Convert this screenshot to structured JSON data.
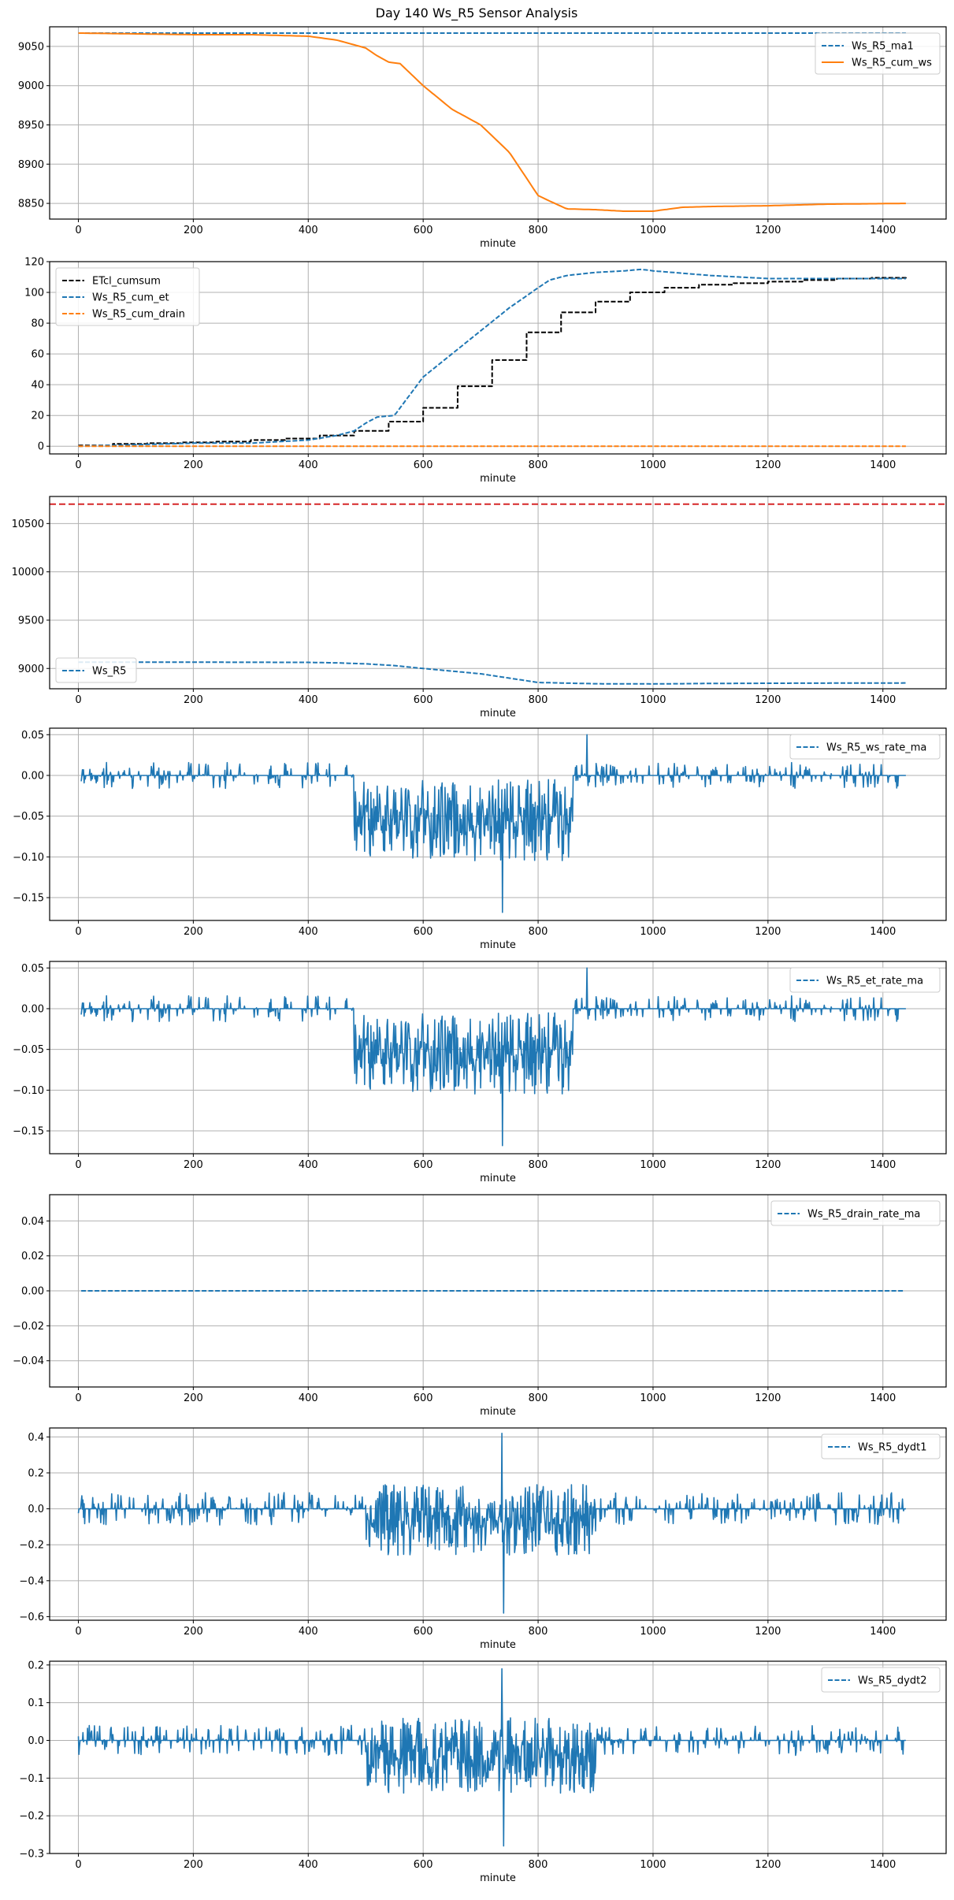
{
  "figure": {
    "title": "Day 140 Ws_R5 Sensor Analysis"
  },
  "colors": {
    "blue": "#1f77b4",
    "orange": "#ff7f0e",
    "black": "#000000",
    "red": "#d62728"
  },
  "chart_data": [
    {
      "type": "line",
      "xlabel": "minute",
      "xlim": [
        -50,
        1510
      ],
      "ylim": [
        8830,
        9075
      ],
      "xticks": [
        0,
        200,
        400,
        600,
        800,
        1000,
        1200,
        1400
      ],
      "yticks": [
        8850,
        8900,
        8950,
        9000,
        9050
      ],
      "legend_position": "top-right",
      "series": [
        {
          "name": "Ws_R5_ma1",
          "color": "blue",
          "style": "dashed",
          "shape": "smooth",
          "x": [
            0,
            1440
          ],
          "y": [
            9067,
            9067
          ]
        },
        {
          "name": "Ws_R5_cum_ws",
          "color": "orange",
          "style": "solid",
          "shape": "smooth",
          "x": [
            0,
            100,
            200,
            300,
            400,
            450,
            500,
            520,
            540,
            560,
            600,
            650,
            700,
            750,
            800,
            820,
            850,
            900,
            950,
            1000,
            1050,
            1100,
            1200,
            1300,
            1440
          ],
          "y": [
            9067,
            9066,
            9065,
            9065,
            9063,
            9058,
            9048,
            9038,
            9030,
            9028,
            9000,
            8970,
            8950,
            8915,
            8860,
            8853,
            8843,
            8842,
            8840,
            8840,
            8845,
            8846,
            8847,
            8849,
            8850
          ]
        }
      ]
    },
    {
      "type": "line",
      "xlabel": "minute",
      "xlim": [
        -50,
        1510
      ],
      "ylim": [
        -5,
        120
      ],
      "xticks": [
        0,
        200,
        400,
        600,
        800,
        1000,
        1200,
        1400
      ],
      "yticks": [
        0,
        20,
        40,
        60,
        80,
        100,
        120
      ],
      "legend_position": "top-left",
      "series": [
        {
          "name": "ETcl_cumsum",
          "color": "black",
          "style": "dashed",
          "shape": "step",
          "x": [
            0,
            60,
            120,
            180,
            240,
            300,
            360,
            420,
            480,
            540,
            600,
            660,
            720,
            780,
            840,
            900,
            960,
            1020,
            1080,
            1140,
            1200,
            1260,
            1320,
            1380,
            1440
          ],
          "y": [
            0.5,
            1.5,
            2,
            2.5,
            3,
            4,
            5,
            7,
            10,
            16,
            25,
            39,
            56,
            74,
            87,
            94,
            100,
            103,
            105,
            106,
            107,
            108,
            109,
            109.5,
            110
          ]
        },
        {
          "name": "Ws_R5_cum_et",
          "color": "blue",
          "style": "dashed",
          "shape": "smooth",
          "x": [
            0,
            100,
            200,
            300,
            400,
            450,
            480,
            500,
            520,
            550,
            560,
            600,
            650,
            700,
            750,
            800,
            820,
            850,
            900,
            950,
            980,
            1000,
            1100,
            1200,
            1300,
            1440
          ],
          "y": [
            0,
            1,
            2,
            2,
            4,
            7,
            10,
            15,
            19,
            20,
            25,
            45,
            60,
            75,
            90,
            103,
            108,
            111,
            113,
            114,
            115,
            114,
            111,
            109,
            109,
            109
          ]
        },
        {
          "name": "Ws_R5_cum_drain",
          "color": "orange",
          "style": "dashed",
          "shape": "smooth",
          "x": [
            0,
            1440
          ],
          "y": [
            0,
            0
          ]
        }
      ]
    },
    {
      "type": "line",
      "xlabel": "minute",
      "xlim": [
        -50,
        1510
      ],
      "ylim": [
        8790,
        10780
      ],
      "xticks": [
        0,
        200,
        400,
        600,
        800,
        1000,
        1200,
        1400
      ],
      "yticks": [
        9000,
        9500,
        10000,
        10500
      ],
      "legend_position": "bottom-left",
      "hline": {
        "y": 10700,
        "color": "red",
        "style": "dashed"
      },
      "series": [
        {
          "name": "Ws_R5",
          "color": "blue",
          "style": "dashed",
          "shape": "smooth",
          "x": [
            0,
            200,
            400,
            450,
            500,
            550,
            600,
            700,
            800,
            900,
            1000,
            1100,
            1200,
            1440
          ],
          "y": [
            9065,
            9065,
            9063,
            9058,
            9048,
            9030,
            9000,
            8945,
            8855,
            8842,
            8840,
            8845,
            8847,
            8850
          ]
        }
      ]
    },
    {
      "type": "line",
      "xlabel": "minute",
      "xlim": [
        -50,
        1510
      ],
      "ylim": [
        -0.178,
        0.058
      ],
      "xticks": [
        0,
        200,
        400,
        600,
        800,
        1000,
        1200,
        1400
      ],
      "yticks": [
        -0.15,
        -0.1,
        -0.05,
        0.0,
        0.05
      ],
      "ytick_labels": [
        "−0.15",
        "−0.10",
        "−0.05",
        "0.00",
        "0.05"
      ],
      "legend_position": "top-right",
      "series": [
        {
          "name": "Ws_R5_ws_rate_ma",
          "color": "blue",
          "style": "dashed",
          "shape": "noisy",
          "x": [
            5,
            1440
          ],
          "y": [
            0,
            0
          ],
          "noise": {
            "seed": 11,
            "amp_quiet": 0.016,
            "amp_active": 0.05,
            "active_range": [
              480,
              860
            ],
            "center_active": -0.055,
            "spike_x": 738,
            "spike_y": -0.168,
            "peak_x": 885,
            "peak_y": 0.05
          }
        }
      ]
    },
    {
      "type": "line",
      "xlabel": "minute",
      "xlim": [
        -50,
        1510
      ],
      "ylim": [
        -0.178,
        0.058
      ],
      "xticks": [
        0,
        200,
        400,
        600,
        800,
        1000,
        1200,
        1400
      ],
      "yticks": [
        -0.15,
        -0.1,
        -0.05,
        0.0,
        0.05
      ],
      "ytick_labels": [
        "−0.15",
        "−0.10",
        "−0.05",
        "0.00",
        "0.05"
      ],
      "legend_position": "top-right",
      "series": [
        {
          "name": "Ws_R5_et_rate_ma",
          "color": "blue",
          "style": "dashed",
          "shape": "noisy",
          "x": [
            5,
            1440
          ],
          "y": [
            0,
            0
          ],
          "noise": {
            "seed": 11,
            "amp_quiet": 0.016,
            "amp_active": 0.05,
            "active_range": [
              480,
              860
            ],
            "center_active": -0.055,
            "spike_x": 738,
            "spike_y": -0.168,
            "peak_x": 885,
            "peak_y": 0.05
          }
        }
      ]
    },
    {
      "type": "line",
      "xlabel": "minute",
      "xlim": [
        -50,
        1510
      ],
      "ylim": [
        -0.055,
        0.055
      ],
      "xticks": [
        0,
        200,
        400,
        600,
        800,
        1000,
        1200,
        1400
      ],
      "yticks": [
        -0.04,
        -0.02,
        0.0,
        0.02,
        0.04
      ],
      "ytick_labels": [
        "−0.04",
        "−0.02",
        "0.00",
        "0.02",
        "0.04"
      ],
      "legend_position": "top-right",
      "series": [
        {
          "name": "Ws_R5_drain_rate_ma",
          "color": "blue",
          "style": "dashed",
          "shape": "smooth",
          "x": [
            5,
            1440
          ],
          "y": [
            0,
            0
          ]
        }
      ]
    },
    {
      "type": "line",
      "xlabel": "minute",
      "xlim": [
        -50,
        1510
      ],
      "ylim": [
        -0.62,
        0.45
      ],
      "xticks": [
        0,
        200,
        400,
        600,
        800,
        1000,
        1200,
        1400
      ],
      "yticks": [
        -0.6,
        -0.4,
        -0.2,
        0.0,
        0.2,
        0.4
      ],
      "ytick_labels": [
        "−0.6",
        "−0.4",
        "−0.2",
        "0.0",
        "0.2",
        "0.4"
      ],
      "legend_position": "top-right",
      "series": [
        {
          "name": "Ws_R5_dydt1",
          "color": "blue",
          "style": "dashed",
          "shape": "noisy",
          "x": [
            0,
            1440
          ],
          "y": [
            0,
            0
          ],
          "noise": {
            "seed": 23,
            "amp_quiet": 0.09,
            "amp_active": 0.2,
            "active_range": [
              500,
              900
            ],
            "center_active": -0.06,
            "spike_x": 737,
            "spike_y": 0.42,
            "peak_x": 740,
            "peak_y": -0.58
          }
        }
      ]
    },
    {
      "type": "line",
      "xlabel": "minute",
      "xlim": [
        -50,
        1510
      ],
      "ylim": [
        -0.3,
        0.21
      ],
      "xticks": [
        0,
        200,
        400,
        600,
        800,
        1000,
        1200,
        1400
      ],
      "yticks": [
        -0.3,
        -0.2,
        -0.1,
        0.0,
        0.1,
        0.2
      ],
      "ytick_labels": [
        "−0.3",
        "−0.2",
        "−0.1",
        "0.0",
        "0.1",
        "0.2"
      ],
      "legend_position": "top-right",
      "series": [
        {
          "name": "Ws_R5_dydt2",
          "color": "blue",
          "style": "dashed",
          "shape": "noisy",
          "x": [
            0,
            1440
          ],
          "y": [
            0,
            0
          ],
          "noise": {
            "seed": 37,
            "amp_quiet": 0.04,
            "amp_active": 0.1,
            "active_range": [
              500,
              900
            ],
            "center_active": -0.04,
            "spike_x": 737,
            "spike_y": 0.19,
            "peak_x": 740,
            "peak_y": -0.28
          }
        }
      ]
    }
  ]
}
